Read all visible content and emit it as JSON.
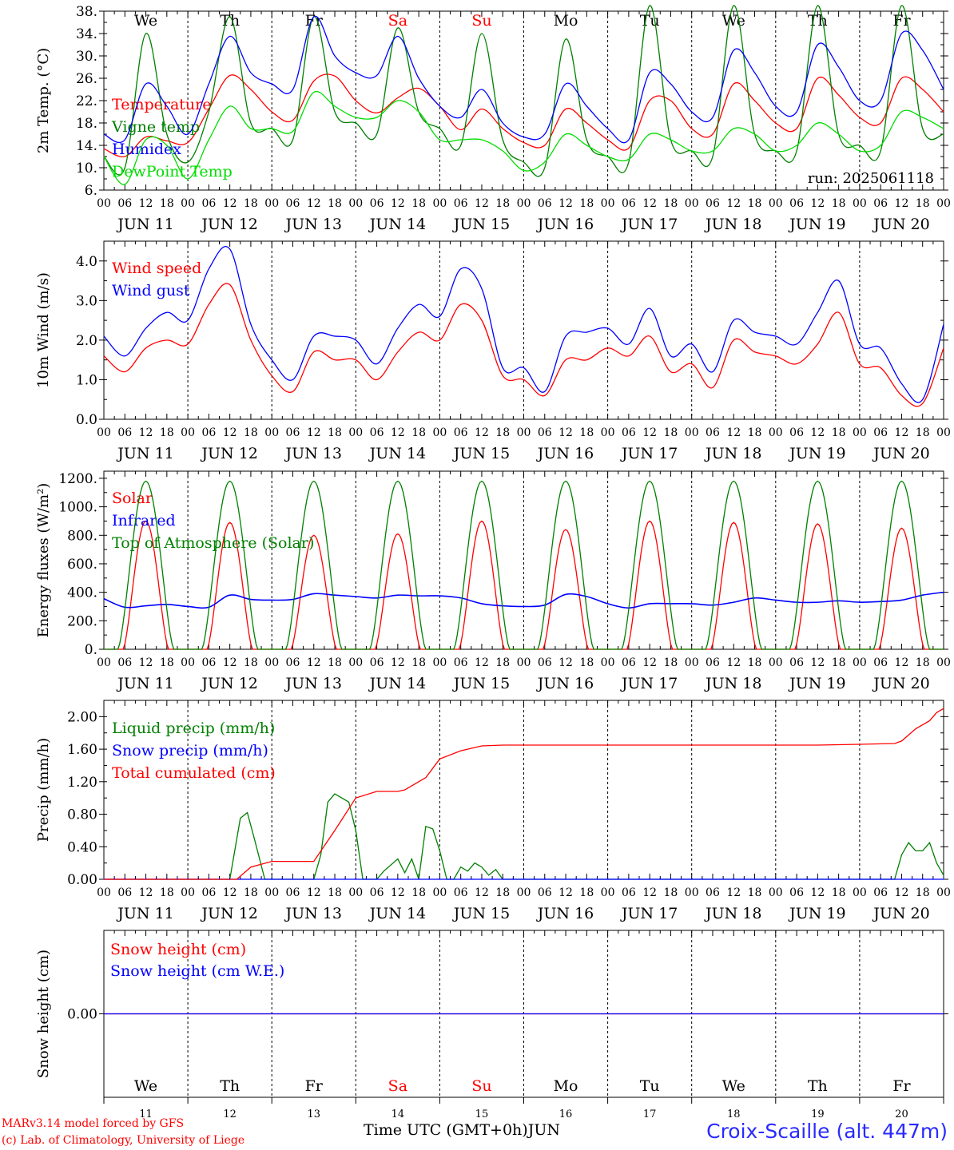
{
  "chart_data": [
    {
      "type": "line",
      "ylabel": "2m Temp. (°C)",
      "ylim": [
        6,
        38
      ],
      "yticks": [
        "6.",
        "10.",
        "14.",
        "18.",
        "22.",
        "26.",
        "30.",
        "34.",
        "38."
      ],
      "run_label": "run: 2025061118",
      "day_labels_top": [
        "We",
        "Th",
        "Fr",
        "Sa",
        "Su",
        "Mo",
        "Tu",
        "We",
        "Th",
        "Fr"
      ],
      "weekend_color": "#ff0000",
      "legend_placement": "left",
      "series": [
        {
          "name": "Temperature",
          "color": "#ff0000",
          "x": [
            0,
            6,
            12,
            18,
            24,
            30,
            36,
            42,
            48,
            54,
            60,
            66,
            72,
            78,
            84,
            90,
            96,
            102,
            108,
            114,
            120,
            126,
            132,
            138,
            144,
            150,
            156,
            162,
            168,
            174,
            180,
            186,
            192,
            198,
            204,
            210,
            216,
            222,
            228,
            234,
            240
          ],
          "values": [
            13.4,
            12.0,
            15.5,
            14.8,
            14.5,
            20.5,
            26.5,
            24.0,
            20.0,
            18.5,
            25.5,
            26.4,
            22.0,
            19.8,
            22.5,
            24.2,
            21.0,
            16.8,
            20.5,
            17.0,
            14.5,
            14.0,
            20.5,
            18.0,
            15.0,
            13.5,
            22.0,
            22.0,
            17.0,
            16.0,
            25.0,
            22.0,
            18.0,
            17.0,
            26.0,
            23.0,
            19.0,
            18.0,
            26.0,
            24.0,
            20.0
          ]
        },
        {
          "name": "Vigne temp",
          "color": "#008000",
          "x": [
            0,
            6,
            12,
            18,
            24,
            30,
            36,
            42,
            48,
            54,
            60,
            66,
            72,
            78,
            84,
            90,
            96,
            102,
            108,
            114,
            120,
            126,
            132,
            138,
            144,
            150,
            156,
            162,
            168,
            174,
            180,
            186,
            192,
            198,
            204,
            210,
            216,
            222,
            228,
            234,
            240
          ],
          "values": [
            12.0,
            10.0,
            34.0,
            16.0,
            11.0,
            20.0,
            37.0,
            18.0,
            17.0,
            15.0,
            37.0,
            20.0,
            18.0,
            16.0,
            35.0,
            20.0,
            17.0,
            14.0,
            34.0,
            15.0,
            11.0,
            10.0,
            33.0,
            15.0,
            12.0,
            11.0,
            39.0,
            15.0,
            13.0,
            12.0,
            39.0,
            16.0,
            13.0,
            13.0,
            39.0,
            16.0,
            14.0,
            13.0,
            39.0,
            17.0,
            16.0
          ]
        },
        {
          "name": "Humidex",
          "color": "#0000ff",
          "x": [
            0,
            6,
            12,
            18,
            24,
            30,
            36,
            42,
            48,
            54,
            60,
            66,
            72,
            78,
            84,
            90,
            96,
            102,
            108,
            114,
            120,
            126,
            132,
            138,
            144,
            150,
            156,
            162,
            168,
            174,
            180,
            186,
            192,
            198,
            204,
            210,
            216,
            222,
            228,
            234,
            240
          ],
          "values": [
            16.0,
            15.0,
            25.0,
            21.0,
            16.0,
            25.0,
            33.5,
            27.0,
            25.0,
            24.0,
            37.0,
            30.0,
            27.0,
            26.5,
            33.5,
            26.0,
            21.0,
            19.0,
            24.0,
            18.0,
            15.5,
            16.0,
            25.0,
            21.0,
            17.0,
            15.0,
            27.0,
            25.0,
            20.0,
            19.0,
            31.0,
            27.0,
            21.0,
            20.0,
            32.0,
            28.0,
            22.0,
            22.0,
            34.0,
            31.0,
            24.0
          ]
        },
        {
          "name": "DewPoint Temp",
          "color": "#00dd00",
          "x": [
            0,
            6,
            12,
            18,
            24,
            30,
            36,
            42,
            48,
            54,
            60,
            66,
            72,
            78,
            84,
            90,
            96,
            102,
            108,
            114,
            120,
            126,
            132,
            138,
            144,
            150,
            156,
            162,
            168,
            174,
            180,
            186,
            192,
            198,
            204,
            210,
            216,
            222,
            228,
            234,
            240
          ],
          "values": [
            12.0,
            7.0,
            15.0,
            14.0,
            8.0,
            15.0,
            21.0,
            17.0,
            17.0,
            16.5,
            23.5,
            21.0,
            19.0,
            19.0,
            22.0,
            20.0,
            15.0,
            15.0,
            15.0,
            13.0,
            9.5,
            11.0,
            16.0,
            14.0,
            12.0,
            11.5,
            16.0,
            15.0,
            13.0,
            13.0,
            17.0,
            16.0,
            13.0,
            14.0,
            18.0,
            16.0,
            13.0,
            14.0,
            20.0,
            19.0,
            17.0
          ]
        }
      ]
    },
    {
      "type": "line",
      "ylabel": "10m Wind (m/s)",
      "ylim": [
        0,
        4.5
      ],
      "yticks": [
        "0.0",
        "1.0",
        "2.0",
        "3.0",
        "4.0"
      ],
      "series": [
        {
          "name": "Wind speed",
          "color": "#ff0000",
          "x": [
            0,
            6,
            12,
            18,
            24,
            30,
            36,
            42,
            48,
            54,
            60,
            66,
            72,
            78,
            84,
            90,
            96,
            102,
            108,
            114,
            120,
            126,
            132,
            138,
            144,
            150,
            156,
            162,
            168,
            174,
            180,
            186,
            192,
            198,
            204,
            210,
            216,
            222,
            228,
            234,
            240
          ],
          "values": [
            1.6,
            1.2,
            1.8,
            2.0,
            1.9,
            2.9,
            3.4,
            2.0,
            1.1,
            0.7,
            1.7,
            1.5,
            1.5,
            1.0,
            1.7,
            2.2,
            2.0,
            2.9,
            2.5,
            1.1,
            1.0,
            0.6,
            1.5,
            1.5,
            1.8,
            1.6,
            2.1,
            1.2,
            1.4,
            0.8,
            2.0,
            1.7,
            1.6,
            1.4,
            1.9,
            2.7,
            1.4,
            1.3,
            0.6,
            0.4,
            1.8
          ]
        },
        {
          "name": "Wind gust",
          "color": "#0000ff",
          "x": [
            0,
            6,
            12,
            18,
            24,
            30,
            36,
            42,
            48,
            54,
            60,
            66,
            72,
            78,
            84,
            90,
            96,
            102,
            108,
            114,
            120,
            126,
            132,
            138,
            144,
            150,
            156,
            162,
            168,
            174,
            180,
            186,
            192,
            198,
            204,
            210,
            216,
            222,
            228,
            234,
            240
          ],
          "values": [
            2.1,
            1.6,
            2.3,
            2.7,
            2.5,
            3.8,
            4.3,
            2.4,
            1.5,
            1.0,
            2.1,
            2.1,
            2.0,
            1.4,
            2.3,
            2.9,
            2.6,
            3.8,
            3.3,
            1.3,
            1.3,
            0.7,
            2.1,
            2.2,
            2.3,
            1.9,
            2.8,
            1.6,
            1.9,
            1.2,
            2.5,
            2.2,
            2.1,
            1.9,
            2.7,
            3.5,
            1.9,
            1.8,
            0.9,
            0.5,
            2.4
          ]
        }
      ]
    },
    {
      "type": "line",
      "ylabel": "Energy fluxes (W/m²)",
      "ylim": [
        0,
        1250
      ],
      "yticks": [
        "0.",
        "200.",
        "400.",
        "600.",
        "800.",
        "1000.",
        "1200."
      ],
      "series": [
        {
          "name": "Solar",
          "color": "#ff0000",
          "peaks": [
            900,
            890,
            800,
            810,
            900,
            840,
            900,
            890,
            880,
            850
          ]
        },
        {
          "name": "Infrared",
          "color": "#0000ff",
          "x": [
            0,
            6,
            12,
            18,
            24,
            30,
            36,
            42,
            48,
            54,
            60,
            66,
            72,
            78,
            84,
            90,
            96,
            102,
            108,
            114,
            120,
            126,
            132,
            138,
            144,
            150,
            156,
            162,
            168,
            174,
            180,
            186,
            192,
            198,
            204,
            210,
            216,
            222,
            228,
            234,
            240
          ],
          "values": [
            355,
            295,
            305,
            315,
            300,
            295,
            380,
            350,
            345,
            350,
            390,
            380,
            370,
            360,
            380,
            375,
            375,
            360,
            320,
            305,
            300,
            310,
            385,
            370,
            320,
            290,
            320,
            320,
            320,
            310,
            330,
            360,
            345,
            330,
            330,
            340,
            330,
            335,
            345,
            380,
            400
          ]
        },
        {
          "name": "Top of Atmosphere (Solar)",
          "color": "#008000",
          "peaks": [
            1180,
            1180,
            1180,
            1180,
            1180,
            1180,
            1180,
            1180,
            1180,
            1180
          ]
        }
      ]
    },
    {
      "type": "line",
      "ylabel": "Precip (mm/h)",
      "ylim": [
        0,
        2.2
      ],
      "yticks": [
        "0.00",
        "0.40",
        "0.80",
        "1.20",
        "1.60",
        "2.00"
      ],
      "series": [
        {
          "name": "Liquid precip (mm/h)",
          "color": "#008000",
          "x": [
            0,
            36,
            39,
            41,
            43,
            46,
            48,
            60,
            62,
            64,
            66,
            68,
            70,
            72,
            74,
            76,
            78,
            80,
            84,
            86,
            88,
            90,
            92,
            94,
            96,
            98,
            100,
            102,
            104,
            106,
            108,
            110,
            112,
            114,
            116,
            226,
            228,
            230,
            232,
            234,
            236,
            238,
            240
          ],
          "values": [
            0,
            0,
            0.75,
            0.82,
            0.5,
            0,
            0,
            0,
            0.3,
            0.95,
            1.05,
            1.0,
            0.95,
            0.6,
            0,
            0,
            0,
            0.1,
            0.25,
            0.08,
            0.25,
            0,
            0.65,
            0.62,
            0.35,
            0,
            0,
            0.15,
            0.1,
            0.2,
            0.15,
            0.05,
            0.12,
            0,
            0,
            0,
            0.3,
            0.45,
            0.35,
            0.35,
            0.45,
            0.2,
            0.05
          ]
        },
        {
          "name": "Snow precip (mm/h)",
          "color": "#0000ff",
          "x": [
            0,
            240
          ],
          "values": [
            0,
            0
          ]
        },
        {
          "name": "Total cumulated (cm)",
          "color": "#ff0000",
          "x": [
            0,
            38,
            42,
            48,
            54,
            60,
            66,
            72,
            78,
            84,
            86,
            88,
            90,
            92,
            96,
            102,
            108,
            114,
            120,
            132,
            144,
            156,
            168,
            180,
            192,
            204,
            216,
            226,
            228,
            232,
            236,
            238,
            240
          ],
          "values": [
            0,
            0,
            0.15,
            0.22,
            0.22,
            0.22,
            0.6,
            1.0,
            1.08,
            1.08,
            1.1,
            1.15,
            1.2,
            1.25,
            1.48,
            1.58,
            1.64,
            1.65,
            1.65,
            1.65,
            1.65,
            1.65,
            1.65,
            1.65,
            1.65,
            1.65,
            1.66,
            1.67,
            1.7,
            1.85,
            1.95,
            2.05,
            2.1
          ]
        }
      ]
    },
    {
      "type": "line",
      "ylabel": "Snow height (cm)",
      "ylim": [
        -1,
        1
      ],
      "yticks": [
        "0.00"
      ],
      "day_labels_bottom": [
        "We",
        "Th",
        "Fr",
        "Sa",
        "Su",
        "Mo",
        "Tu",
        "We",
        "Th",
        "Fr"
      ],
      "series": [
        {
          "name": "Snow height (cm)",
          "color": "#ff0000",
          "x": [
            0,
            240
          ],
          "values": [
            0,
            0
          ]
        },
        {
          "name": "Snow height (cm W.E.)",
          "color": "#0000ff",
          "x": [
            0,
            240
          ],
          "values": [
            0,
            0
          ]
        }
      ]
    }
  ],
  "x_axis": {
    "hour_labels": [
      "00",
      "06",
      "12",
      "18"
    ],
    "end_label": "00",
    "date_labels": [
      "JUN 11",
      "JUN 12",
      "JUN 13",
      "JUN 14",
      "JUN 15",
      "JUN 16",
      "JUN 17",
      "JUN 18",
      "JUN 19",
      "JUN 20"
    ],
    "day_numbers": [
      "11",
      "12",
      "13",
      "14",
      "15",
      "16",
      "17",
      "18",
      "19",
      "20"
    ],
    "xlabel": "Time UTC (GMT+0h)",
    "month_label": "JUN"
  },
  "footer": {
    "credit_line1": "MARv3.14 model forced by GFS",
    "credit_line2": "(c) Lab. of Climatology, University of Liege",
    "station": "Croix-Scaille (alt. 447m)"
  }
}
